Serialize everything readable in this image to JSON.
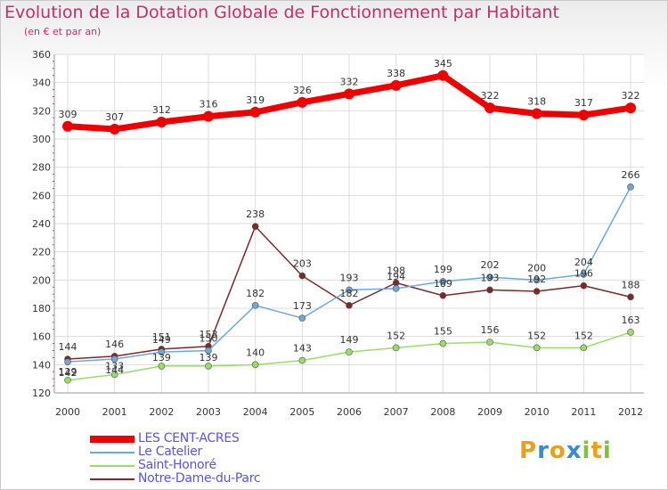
{
  "chart_data": {
    "type": "line",
    "title": "Evolution de la Dotation Globale de Fonctionnement par Habitant",
    "subtitle": "(en € et par an)",
    "x": [
      "2000",
      "2001",
      "2002",
      "2003",
      "2004",
      "2005",
      "2006",
      "2007",
      "2008",
      "2009",
      "2010",
      "2011",
      "2012"
    ],
    "ylim": [
      120,
      360
    ],
    "yticks": [
      120,
      140,
      160,
      180,
      200,
      220,
      240,
      260,
      280,
      300,
      320,
      340,
      360
    ],
    "grid": true,
    "legend_position": "bottom-left",
    "series": [
      {
        "name": "LES CENT-ACRES",
        "color": "#ee0000",
        "values": [
          309,
          307,
          312,
          316,
          319,
          326,
          332,
          338,
          345,
          322,
          318,
          317,
          322
        ]
      },
      {
        "name": "Le Catelier",
        "color": "#6fa8d4",
        "values": [
          142,
          144,
          149,
          150,
          182,
          173,
          193,
          194,
          199,
          202,
          200,
          204,
          266
        ]
      },
      {
        "name": "Saint-Honoré",
        "color": "#99dd66",
        "values": [
          129,
          133,
          139,
          139,
          140,
          143,
          149,
          152,
          155,
          156,
          152,
          152,
          163
        ]
      },
      {
        "name": "Notre-Dame-du-Parc",
        "color": "#7a2a2a",
        "values": [
          144,
          146,
          151,
          153,
          238,
          203,
          182,
          198,
          189,
          193,
          192,
          196,
          188
        ]
      }
    ]
  },
  "brand": {
    "letters": [
      "P",
      "r",
      "o",
      "x",
      "i",
      "t",
      "i"
    ],
    "colors": [
      "#e8a020",
      "#3a8ad0",
      "#e8a020",
      "#3a8ad0",
      "#7dc23c",
      "#e8a020",
      "#7dc23c"
    ]
  }
}
